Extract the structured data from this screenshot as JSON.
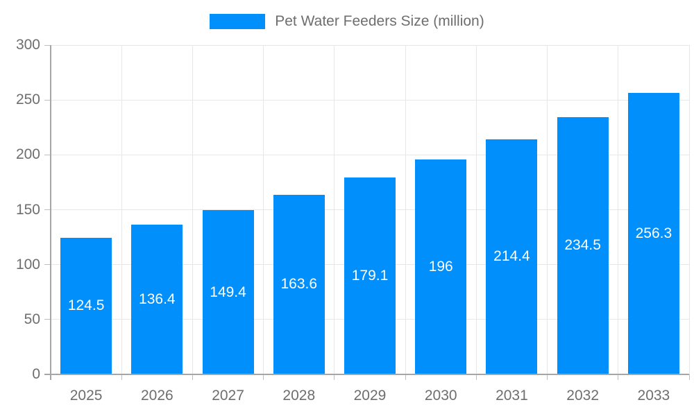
{
  "legend": {
    "label": "Pet Water Feeders Size (million)"
  },
  "chart_data": {
    "type": "bar",
    "title": "Pet Water Feeders Size (million)",
    "categories": [
      "2025",
      "2026",
      "2027",
      "2028",
      "2029",
      "2030",
      "2031",
      "2032",
      "2033"
    ],
    "values": [
      124.5,
      136.4,
      149.4,
      163.6,
      179.1,
      196,
      214.4,
      234.5,
      256.3
    ],
    "value_labels": [
      "124.5",
      "136.4",
      "149.4",
      "163.6",
      "179.1",
      "196",
      "214.4",
      "234.5",
      "256.3"
    ],
    "xlabel": "",
    "ylabel": "",
    "ylim": [
      0,
      300
    ],
    "yticks": [
      0,
      50,
      100,
      150,
      200,
      250,
      300
    ],
    "grid": true,
    "legend_position": "top",
    "series_name": "Pet Water Feeders Size (million)"
  },
  "colors": {
    "bar": "#008FFB",
    "bar_value_label": "#FFFFFF",
    "grid": "#E7E7E7",
    "axis": "#A6A6A6",
    "tick_mark": "#BDBDBD",
    "tick_label": "#6E6E6E",
    "background": "#FFFFFF"
  }
}
